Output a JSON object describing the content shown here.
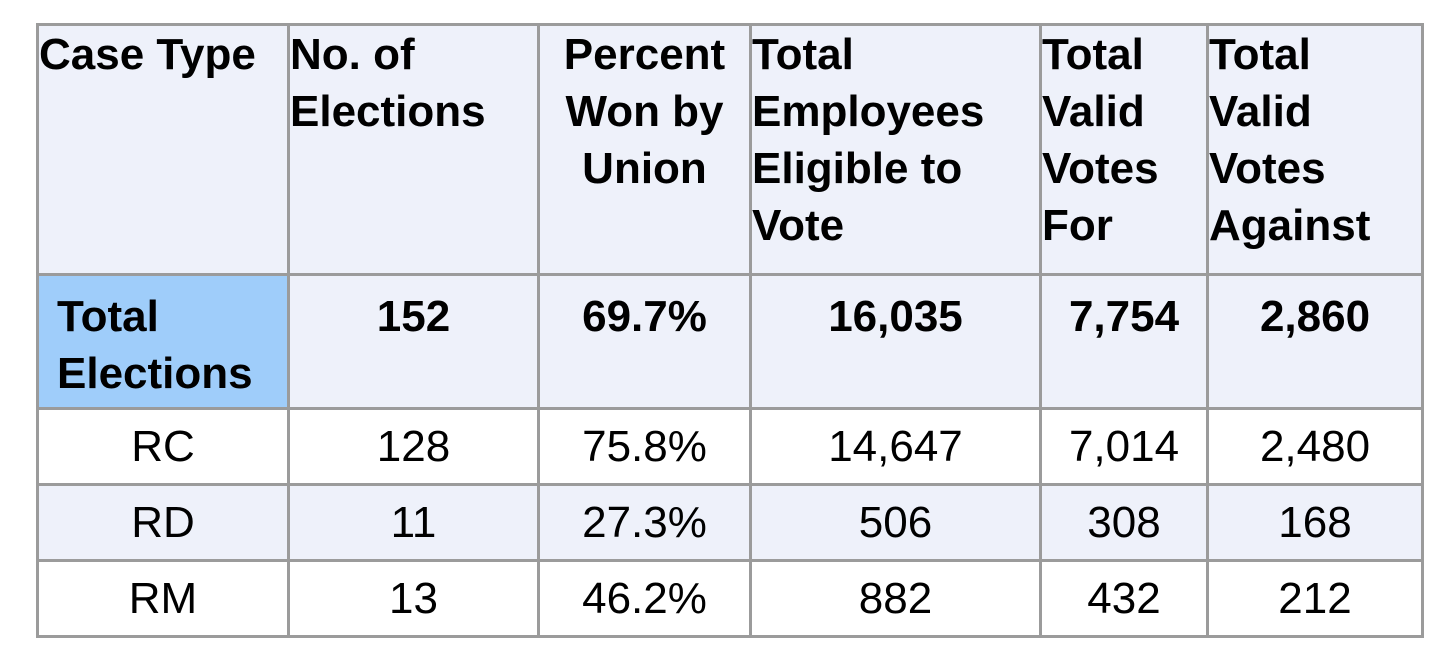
{
  "table": {
    "headers": [
      "Case Type",
      "No. of Elections",
      "Percent Won by Union",
      "Total Employees Eligible to Vote",
      "Total Valid Votes For",
      "Total Valid Votes Against"
    ],
    "total_row": {
      "label": "Total Elections",
      "values": [
        "152",
        "69.7%",
        "16,035",
        "7,754",
        "2,860"
      ]
    },
    "rows": [
      {
        "type": "RC",
        "values": [
          "128",
          "75.8%",
          "14,647",
          "7,014",
          "2,480"
        ]
      },
      {
        "type": "RD",
        "values": [
          "11",
          "27.3%",
          "506",
          "308",
          "168"
        ]
      },
      {
        "type": "RM",
        "values": [
          "13",
          "46.2%",
          "882",
          "432",
          "212"
        ]
      }
    ]
  },
  "colors": {
    "header_bg": "#eef1fa",
    "highlight_bg": "#9fcdfa",
    "border": "#9b9b9b"
  }
}
